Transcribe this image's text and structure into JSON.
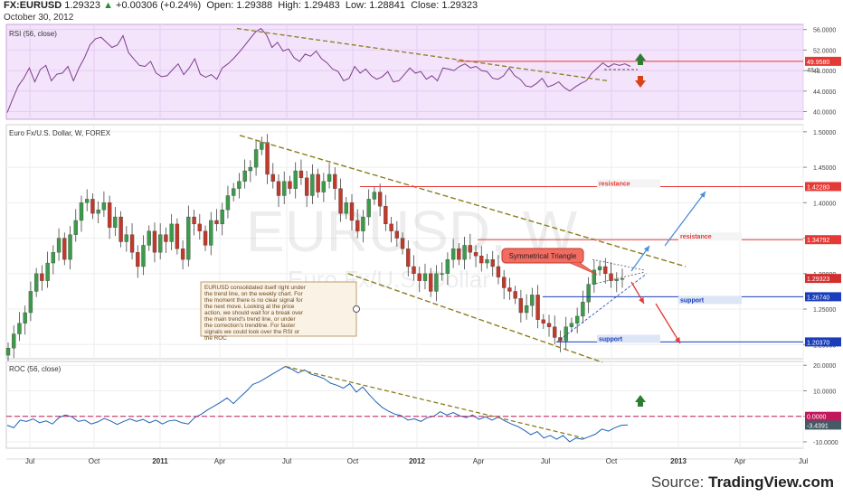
{
  "header": {
    "symbol": "FX:EURUSD",
    "last": "1.29323",
    "change": "+0.00306 (+0.24%)",
    "open_label": "Open:",
    "open": "1.29388",
    "high_label": "High:",
    "high": "1.29483",
    "low_label": "Low:",
    "low": "1.28841",
    "close_label": "Close:",
    "close": "1.29323",
    "date": "October 30, 2012"
  },
  "source": {
    "prefix": "Source: ",
    "name": "TradingView.com"
  },
  "x_axis": {
    "ticks": [
      "Jul",
      "Oct",
      "2011",
      "Apr",
      "Jul",
      "Oct",
      "2012",
      "Apr",
      "Jul",
      "Oct",
      "2013",
      "Apr",
      "Jul"
    ]
  },
  "chart_data": [
    {
      "type": "line",
      "title": "RSI (56, close)",
      "yticks": [
        "56.0000",
        "52.0000",
        "48.0000",
        "44.0000",
        "40.0000"
      ],
      "ylim": [
        38.5,
        57.0
      ],
      "series": [
        {
          "values": [
            39.8,
            42.5,
            45.0,
            46.5,
            48.5,
            45.8,
            48.2,
            49.0,
            46.0,
            47.3,
            47.5,
            48.8,
            46.0,
            48.5,
            50.5,
            53.0,
            54.2,
            54.5,
            53.5,
            52.5,
            53.0,
            54.8,
            51.5,
            50.2,
            49.0,
            48.8,
            49.8,
            47.5,
            46.8,
            47.0,
            48.2,
            49.3,
            47.2,
            48.5,
            50.3,
            47.3,
            46.7,
            47.2,
            46.3,
            48.5,
            49.3,
            50.3,
            51.5,
            52.8,
            54.2,
            55.5,
            56.2,
            55.0,
            52.5,
            53.5,
            51.8,
            52.2,
            50.5,
            49.8,
            51.2,
            50.8,
            51.8,
            50.3,
            49.5,
            48.3,
            47.8,
            46.0,
            46.5,
            48.8,
            47.5,
            48.3,
            47.0,
            46.3,
            46.8,
            47.8,
            45.8,
            46.0,
            47.2,
            48.5,
            47.5,
            47.8,
            46.3,
            47.0,
            46.0,
            48.5,
            48.3,
            48.0,
            48.8,
            49.3,
            48.5,
            48.8,
            48.0,
            47.8,
            46.5,
            46.3,
            47.0,
            48.5,
            47.0,
            46.3,
            45.0,
            44.8,
            45.5,
            46.5,
            44.8,
            45.2,
            45.8,
            44.7,
            44.0,
            44.8,
            45.5,
            46.0,
            47.5,
            48.5,
            49.5,
            48.7,
            49.3,
            49.0,
            49.3,
            48.8
          ]
        }
      ],
      "reference_level": "49.9580",
      "marker_below": "48.1",
      "arrows": [
        "up",
        "down"
      ]
    },
    {
      "type": "candlestick",
      "title": "Euro Fx/U.S. Dollar, W, FOREX",
      "watermark_symbol": "EURUSD, W",
      "watermark_name": "Euro Fx/U.S. Dollar",
      "yticks": [
        "1.50000",
        "1.45000",
        "1.40000",
        "1.35000",
        "1.30000",
        "1.25000",
        "1.20000"
      ],
      "ylim": [
        1.18,
        1.51
      ],
      "close_values": [
        1.195,
        1.215,
        1.23,
        1.245,
        1.275,
        1.3,
        1.29,
        1.315,
        1.33,
        1.35,
        1.32,
        1.355,
        1.375,
        1.4,
        1.405,
        1.385,
        1.39,
        1.4,
        1.365,
        1.38,
        1.345,
        1.355,
        1.33,
        1.31,
        1.34,
        1.36,
        1.33,
        1.355,
        1.345,
        1.37,
        1.335,
        1.32,
        1.38,
        1.37,
        1.36,
        1.34,
        1.375,
        1.37,
        1.39,
        1.41,
        1.42,
        1.43,
        1.445,
        1.45,
        1.475,
        1.485,
        1.44,
        1.43,
        1.41,
        1.43,
        1.42,
        1.445,
        1.435,
        1.41,
        1.44,
        1.415,
        1.43,
        1.44,
        1.42,
        1.385,
        1.4,
        1.375,
        1.36,
        1.38,
        1.405,
        1.415,
        1.395,
        1.37,
        1.36,
        1.35,
        1.335,
        1.31,
        1.3,
        1.29,
        1.3,
        1.275,
        1.3,
        1.3,
        1.32,
        1.335,
        1.32,
        1.34,
        1.33,
        1.325,
        1.315,
        1.32,
        1.31,
        1.295,
        1.28,
        1.275,
        1.265,
        1.245,
        1.255,
        1.27,
        1.235,
        1.23,
        1.225,
        1.21,
        1.205,
        1.225,
        1.23,
        1.24,
        1.26,
        1.285,
        1.305,
        1.31,
        1.3,
        1.29,
        1.292,
        1.293
      ],
      "levels": [
        {
          "label": "resistance",
          "value": 1.4228,
          "text": "1.42280"
        },
        {
          "label": "resistance",
          "value": 1.34792,
          "text": "1.34792"
        },
        {
          "label": "support",
          "value": 1.2674,
          "text": "1.26740"
        },
        {
          "label": "support",
          "value": 1.2037,
          "text": "1.20370"
        }
      ],
      "last_price": "1.29323",
      "pattern_label": "Symmetrical Triangle",
      "note": "EURUSD consolidated itself right under the trend line, on the weekly chart. For the moment there is no clear signal for the next move. Looking at the price action, we should wait for a break over the main trend's trend line, or under the correction's trendline. For faster signals we could look over the RSI or the ROC"
    },
    {
      "type": "line",
      "title": "ROC (56, close)",
      "yticks": [
        "20.0000",
        "10.0000",
        "0.0000",
        "-10.0000"
      ],
      "ylim": [
        -12.5,
        21.5
      ],
      "series": [
        {
          "values": [
            -3.5,
            -4.5,
            -1.5,
            -2.0,
            -1.0,
            -2.5,
            -1.8,
            -3.0,
            -0.5,
            0.5,
            -0.2,
            -2.0,
            -1.5,
            -3.0,
            -2.2,
            -0.8,
            -1.8,
            -3.2,
            -2.0,
            -1.0,
            -2.0,
            -1.2,
            -2.5,
            -1.5,
            -3.0,
            -1.8,
            -1.5,
            -2.5,
            -3.0,
            -0.5,
            0.8,
            2.5,
            4.0,
            5.5,
            7.2,
            5.0,
            7.5,
            9.8,
            12.5,
            13.5,
            15.0,
            16.5,
            18.0,
            19.5,
            18.5,
            17.0,
            18.2,
            16.5,
            15.8,
            14.8,
            13.0,
            12.2,
            11.0,
            12.8,
            9.5,
            11.5,
            8.5,
            5.8,
            3.5,
            2.0,
            0.8,
            0.2,
            -1.5,
            -1.0,
            -2.0,
            -0.5,
            0.0,
            1.8,
            0.5,
            1.5,
            0.2,
            -0.5,
            0.5,
            -1.2,
            -0.2,
            -1.5,
            -0.3,
            -1.8,
            -3.0,
            -4.0,
            -5.5,
            -7.2,
            -6.0,
            -8.5,
            -7.5,
            -9.0,
            -7.5,
            -10.0,
            -8.5,
            -9.0,
            -8.0,
            -7.0,
            -5.0,
            -5.8,
            -4.5,
            -3.5,
            -3.4
          ]
        }
      ],
      "reference_level": "0.0000",
      "last_value": "-3.4391",
      "arrows": [
        "up"
      ]
    }
  ]
}
